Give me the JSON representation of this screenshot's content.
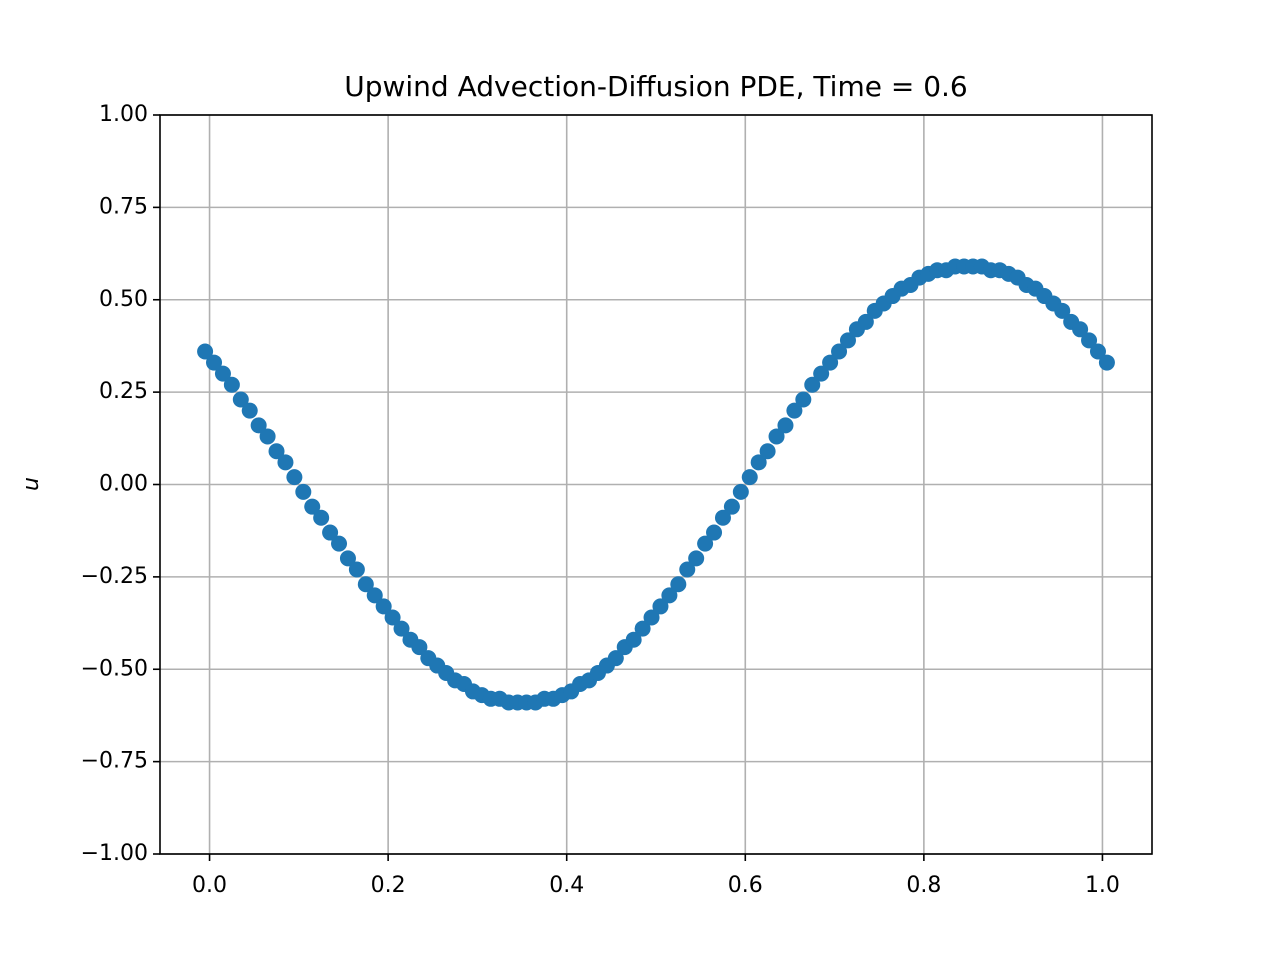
{
  "chart_data": {
    "type": "scatter",
    "title": "Upwind Advection-Diffusion PDE, Time = 0.6",
    "y_label": "u",
    "color": "#1f77b4",
    "grid": true,
    "x": [
      -0.005,
      0.005,
      0.015,
      0.025,
      0.035,
      0.045,
      0.055,
      0.065,
      0.075,
      0.085,
      0.095,
      0.105,
      0.115,
      0.125,
      0.135,
      0.145,
      0.155,
      0.165,
      0.175,
      0.185,
      0.195,
      0.205,
      0.215,
      0.225,
      0.235,
      0.245,
      0.255,
      0.265,
      0.275,
      0.285,
      0.295,
      0.305,
      0.315,
      0.325,
      0.335,
      0.345,
      0.355,
      0.365,
      0.375,
      0.385,
      0.395,
      0.405,
      0.415,
      0.425,
      0.435,
      0.445,
      0.455,
      0.465,
      0.475,
      0.485,
      0.495,
      0.505,
      0.515,
      0.525,
      0.535,
      0.545,
      0.555,
      0.565,
      0.575,
      0.585,
      0.595,
      0.605,
      0.615,
      0.625,
      0.635,
      0.645,
      0.655,
      0.665,
      0.675,
      0.685,
      0.695,
      0.705,
      0.715,
      0.725,
      0.735,
      0.745,
      0.755,
      0.765,
      0.775,
      0.785,
      0.795,
      0.805,
      0.815,
      0.825,
      0.835,
      0.845,
      0.855,
      0.865,
      0.875,
      0.885,
      0.895,
      0.905,
      0.915,
      0.925,
      0.935,
      0.945,
      0.955,
      0.965,
      0.975,
      0.985,
      0.995,
      1.005
    ],
    "values": [
      0.36,
      0.33,
      0.3,
      0.27,
      0.23,
      0.2,
      0.16,
      0.13,
      0.09,
      0.06,
      0.02,
      -0.02,
      -0.06,
      -0.09,
      -0.13,
      -0.16,
      -0.2,
      -0.23,
      -0.27,
      -0.3,
      -0.33,
      -0.36,
      -0.39,
      -0.42,
      -0.44,
      -0.47,
      -0.49,
      -0.51,
      -0.53,
      -0.54,
      -0.56,
      -0.57,
      -0.58,
      -0.58,
      -0.59,
      -0.59,
      -0.59,
      -0.59,
      -0.58,
      -0.58,
      -0.57,
      -0.56,
      -0.54,
      -0.53,
      -0.51,
      -0.49,
      -0.47,
      -0.44,
      -0.42,
      -0.39,
      -0.36,
      -0.33,
      -0.3,
      -0.27,
      -0.23,
      -0.2,
      -0.16,
      -0.13,
      -0.09,
      -0.06,
      -0.02,
      0.02,
      0.06,
      0.09,
      0.13,
      0.16,
      0.2,
      0.23,
      0.27,
      0.3,
      0.33,
      0.36,
      0.39,
      0.42,
      0.44,
      0.47,
      0.49,
      0.51,
      0.53,
      0.54,
      0.56,
      0.57,
      0.58,
      0.58,
      0.59,
      0.59,
      0.59,
      0.59,
      0.58,
      0.58,
      0.57,
      0.56,
      0.54,
      0.53,
      0.51,
      0.49,
      0.47,
      0.44,
      0.42,
      0.39,
      0.36,
      0.33
    ],
    "xlim": [
      -0.0555,
      1.0555
    ],
    "ylim": [
      -1,
      1
    ],
    "xticks": [
      {
        "value": 0,
        "label": "0.0"
      },
      {
        "value": 0.2,
        "label": "0.2"
      },
      {
        "value": 0.4,
        "label": "0.4"
      },
      {
        "value": 0.6,
        "label": "0.6"
      },
      {
        "value": 0.8,
        "label": "0.8"
      },
      {
        "value": 1,
        "label": "1.0"
      }
    ],
    "yticks": [
      {
        "value": -1,
        "label": "−1.00"
      },
      {
        "value": -0.75,
        "label": "−0.75"
      },
      {
        "value": -0.5,
        "label": "−0.50"
      },
      {
        "value": -0.25,
        "label": "−0.25"
      },
      {
        "value": 0,
        "label": "0.00"
      },
      {
        "value": 0.25,
        "label": "0.25"
      },
      {
        "value": 0.5,
        "label": "0.50"
      },
      {
        "value": 0.75,
        "label": "0.75"
      },
      {
        "value": 1,
        "label": "1.00"
      }
    ]
  }
}
